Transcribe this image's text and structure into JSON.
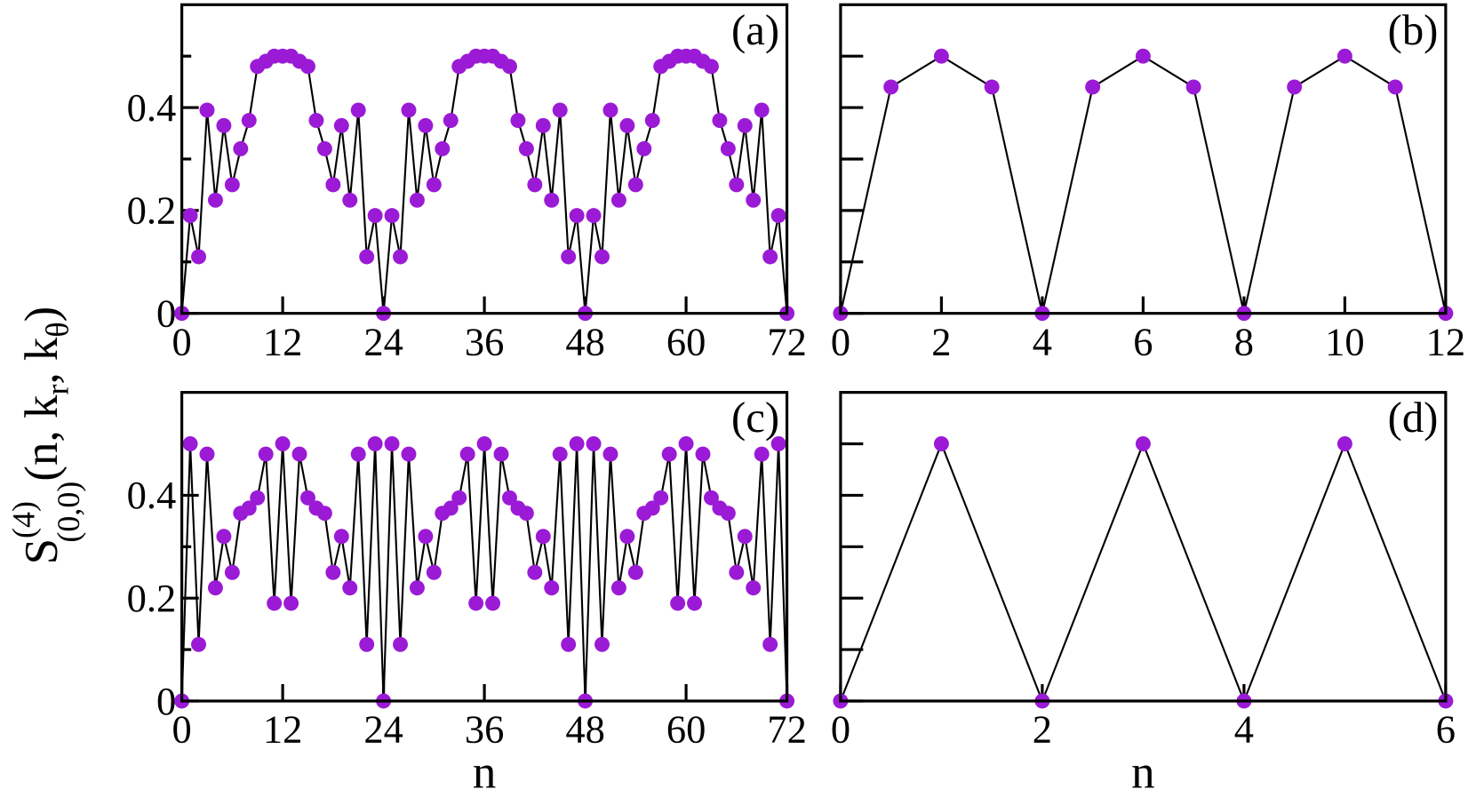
{
  "ylabel": [
    "S",
    "(4)",
    "(0,0)",
    "(n, k",
    "r",
    ", k",
    "θ",
    ")"
  ],
  "chart_data": [
    {
      "type": "line",
      "label": "(a)",
      "x": [
        0,
        1,
        2,
        3,
        4,
        5,
        6,
        7,
        8,
        9,
        10,
        11,
        12,
        13,
        14,
        15,
        16,
        17,
        18,
        19,
        20,
        21,
        22,
        23,
        24,
        25,
        26,
        27,
        28,
        29,
        30,
        31,
        32,
        33,
        34,
        35,
        36,
        37,
        38,
        39,
        40,
        41,
        42,
        43,
        44,
        45,
        46,
        47,
        48,
        49,
        50,
        51,
        52,
        53,
        54,
        55,
        56,
        57,
        58,
        59,
        60,
        61,
        62,
        63,
        64,
        65,
        66,
        67,
        68,
        69,
        70,
        71,
        72
      ],
      "values": [
        0,
        0.19,
        0.11,
        0.395,
        0.22,
        0.365,
        0.25,
        0.32,
        0.375,
        0.48,
        0.49,
        0.5,
        0.5,
        0.5,
        0.49,
        0.48,
        0.375,
        0.32,
        0.25,
        0.365,
        0.22,
        0.395,
        0.11,
        0.19,
        0,
        0.19,
        0.11,
        0.395,
        0.22,
        0.365,
        0.25,
        0.32,
        0.375,
        0.48,
        0.49,
        0.5,
        0.5,
        0.5,
        0.49,
        0.48,
        0.375,
        0.32,
        0.25,
        0.365,
        0.22,
        0.395,
        0.11,
        0.19,
        0,
        0.19,
        0.11,
        0.395,
        0.22,
        0.365,
        0.25,
        0.32,
        0.375,
        0.48,
        0.49,
        0.5,
        0.5,
        0.5,
        0.49,
        0.48,
        0.375,
        0.32,
        0.25,
        0.365,
        0.22,
        0.395,
        0.11,
        0.19,
        0
      ],
      "marker_color": "#9b1ad6",
      "line_color": "#000000",
      "xlim": [
        0,
        72
      ],
      "xticks": [
        0,
        12,
        24,
        36,
        48,
        60,
        72
      ],
      "ylim": [
        0,
        0.6
      ],
      "yticks": [
        0,
        0.2,
        0.4
      ],
      "yminor": [
        0.1,
        0.3,
        0.5
      ],
      "ytick_labels": true
    },
    {
      "type": "line",
      "label": "(b)",
      "x": [
        0,
        1,
        2,
        3,
        4,
        5,
        6,
        7,
        8,
        9,
        10,
        11,
        12
      ],
      "values": [
        0,
        0.44,
        0.5,
        0.44,
        0,
        0.44,
        0.5,
        0.44,
        0,
        0.44,
        0.5,
        0.44,
        0
      ],
      "marker_color": "#9b1ad6",
      "line_color": "#000000",
      "xlim": [
        0,
        12
      ],
      "xticks": [
        0,
        2,
        4,
        6,
        8,
        10,
        12
      ],
      "ylim": [
        0,
        0.6
      ],
      "yticks": [
        0,
        0.1,
        0.2,
        0.3,
        0.4,
        0.5
      ],
      "ytick_labels": false
    },
    {
      "type": "line",
      "label": "(c)",
      "xlabel": "n",
      "x": [
        0,
        1,
        2,
        3,
        4,
        5,
        6,
        7,
        8,
        9,
        10,
        11,
        12,
        13,
        14,
        15,
        16,
        17,
        18,
        19,
        20,
        21,
        22,
        23,
        24,
        25,
        26,
        27,
        28,
        29,
        30,
        31,
        32,
        33,
        34,
        35,
        36,
        37,
        38,
        39,
        40,
        41,
        42,
        43,
        44,
        45,
        46,
        47,
        48,
        49,
        50,
        51,
        52,
        53,
        54,
        55,
        56,
        57,
        58,
        59,
        60,
        61,
        62,
        63,
        64,
        65,
        66,
        67,
        68,
        69,
        70,
        71,
        72
      ],
      "values": [
        0,
        0.5,
        0.11,
        0.48,
        0.22,
        0.32,
        0.25,
        0.365,
        0.375,
        0.395,
        0.48,
        0.19,
        0.5,
        0.19,
        0.48,
        0.395,
        0.375,
        0.365,
        0.25,
        0.32,
        0.22,
        0.48,
        0.11,
        0.5,
        0,
        0.5,
        0.11,
        0.48,
        0.22,
        0.32,
        0.25,
        0.365,
        0.375,
        0.395,
        0.48,
        0.19,
        0.5,
        0.19,
        0.48,
        0.395,
        0.375,
        0.365,
        0.25,
        0.32,
        0.22,
        0.48,
        0.11,
        0.5,
        0,
        0.5,
        0.11,
        0.48,
        0.22,
        0.32,
        0.25,
        0.365,
        0.375,
        0.395,
        0.48,
        0.19,
        0.5,
        0.19,
        0.48,
        0.395,
        0.375,
        0.365,
        0.25,
        0.32,
        0.22,
        0.48,
        0.11,
        0.5,
        0
      ],
      "marker_color": "#9b1ad6",
      "line_color": "#000000",
      "xlim": [
        0,
        72
      ],
      "xticks": [
        0,
        12,
        24,
        36,
        48,
        60,
        72
      ],
      "ylim": [
        0,
        0.6
      ],
      "yticks": [
        0,
        0.2,
        0.4
      ],
      "yminor": [
        0.1,
        0.3,
        0.5
      ],
      "ytick_labels": true
    },
    {
      "type": "line",
      "label": "(d)",
      "xlabel": "n",
      "x": [
        0,
        1,
        2,
        3,
        4,
        5,
        6
      ],
      "values": [
        0,
        0.5,
        0,
        0.5,
        0,
        0.5,
        0
      ],
      "marker_color": "#9b1ad6",
      "line_color": "#000000",
      "xlim": [
        0,
        6
      ],
      "xticks": [
        0,
        2,
        4,
        6
      ],
      "ylim": [
        0,
        0.6
      ],
      "yticks": [
        0,
        0.1,
        0.2,
        0.3,
        0.4,
        0.5
      ],
      "ytick_labels": false
    }
  ]
}
